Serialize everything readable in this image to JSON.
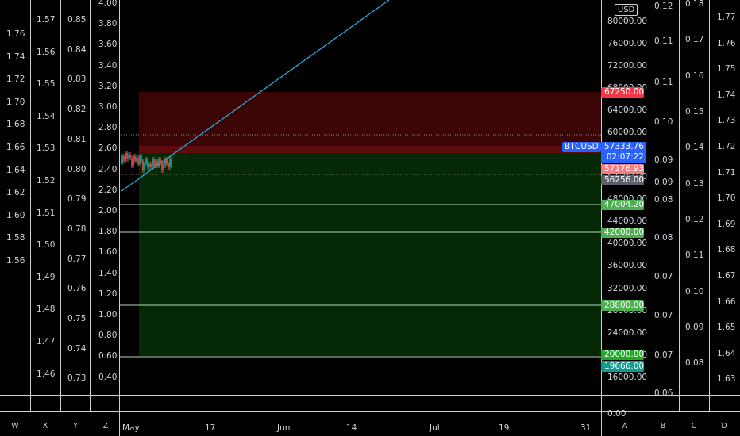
{
  "currency": "USD",
  "symbol": "BTCUSD",
  "last_price": "57333.76",
  "countdown": "02:07:22",
  "axes": {
    "scale_a": [
      "1.76",
      "1.74",
      "1.72",
      "1.70",
      "1.68",
      "1.66",
      "1.64",
      "1.62",
      "1.60",
      "1.58",
      "1.56"
    ],
    "scale_b": [
      "1.57",
      "1.56",
      "1.55",
      "1.54",
      "1.53",
      "1.52",
      "1.51",
      "1.50",
      "1.49",
      "1.48",
      "1.47",
      "1.46"
    ],
    "scale_c": [
      "0.85",
      "0.84",
      "0.83",
      "0.82",
      "0.81",
      "0.80",
      "0.79",
      "0.78",
      "0.77",
      "0.76",
      "0.75",
      "0.74",
      "0.73"
    ],
    "scale_d": [
      "4.00",
      "3.80",
      "3.60",
      "3.40",
      "3.20",
      "3.00",
      "2.80",
      "2.60",
      "2.40",
      "2.20",
      "2.00",
      "1.80",
      "1.60",
      "1.40",
      "1.20",
      "1.00",
      "0.80",
      "0.60",
      "0.40"
    ],
    "price": [
      "80000.00",
      "76000.00",
      "72000.00",
      "68000.00",
      "64000.00",
      "60000.00",
      "52000.00",
      "48000.00",
      "44000.00",
      "40000.00",
      "36000.00",
      "32000.00",
      "28000.00",
      "24000.00",
      "20000.00",
      "16000.00",
      "0.00"
    ],
    "scale_e": [
      "0.12",
      "0.11",
      "0.11",
      "0.10",
      "0.09",
      "0.09",
      "0.08",
      "0.08",
      "0.07",
      "0.07",
      "0.07",
      "0.06"
    ],
    "scale_f": [
      "0.18",
      "0.17",
      "0.16",
      "0.15",
      "0.14",
      "0.13",
      "0.12",
      "0.11",
      "0.10",
      "0.09",
      "0.08"
    ],
    "scale_g": [
      "1.77",
      "1.76",
      "1.75",
      "1.74",
      "1.73",
      "1.72",
      "1.71",
      "1.70",
      "1.69",
      "1.68",
      "1.67",
      "1.66",
      "1.65",
      "1.64",
      "1.63"
    ]
  },
  "price_badges": [
    {
      "label": "67250.00",
      "color": "#f23645"
    },
    {
      "label": "57176.93",
      "color": "#f77c80"
    },
    {
      "label": "56256.00",
      "color": "#5d606b"
    },
    {
      "label": "47004.20",
      "color": "#4caf50"
    },
    {
      "label": "42000.00",
      "color": "#4caf50"
    },
    {
      "label": "28800.00",
      "color": "#4caf50"
    },
    {
      "label": "20000.00",
      "color": "#22ab2a"
    },
    {
      "label": "19666.00",
      "color": "#0d9c8f"
    }
  ],
  "time_axis": [
    "May",
    "17",
    "Jun",
    "14",
    "Jul",
    "19",
    "31"
  ],
  "scale_buttons": [
    "W",
    "X",
    "Y",
    "Z",
    "A",
    "B",
    "C",
    "D"
  ],
  "colors": {
    "stop_zone": "#3a0606",
    "target_zone": "#062a06",
    "trendline": "#2aa9d8",
    "level_line": "#b5d6b5",
    "accent_blue": "#2962ff"
  }
}
